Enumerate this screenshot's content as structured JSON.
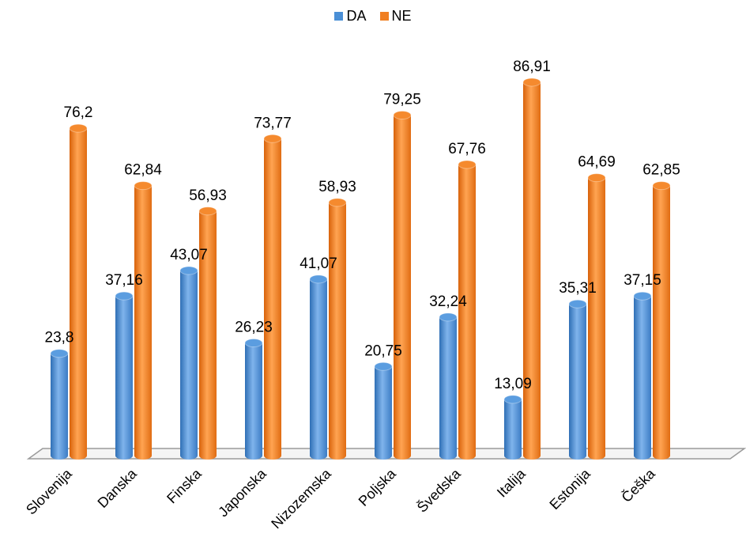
{
  "chart_data": {
    "type": "bar",
    "title": "",
    "xlabel": "",
    "ylabel": "",
    "ylim": [
      0,
      95
    ],
    "grid": false,
    "legend_position": "top-center",
    "categories": [
      "Slovenija",
      "Danska",
      "Finska",
      "Japonska",
      "Nizozemska",
      "Poljska",
      "Švedska",
      "Italija",
      "Estonija",
      "Češka"
    ],
    "series": [
      {
        "name": "DA",
        "color": "#4a8fd6",
        "values": [
          23.8,
          37.16,
          43.07,
          26.23,
          41.07,
          20.75,
          32.24,
          13.09,
          35.31,
          37.15
        ],
        "labels": [
          "23,8",
          "37,16",
          "43,07",
          "26,23",
          "41,07",
          "20,75",
          "32,24",
          "13,09",
          "35,31",
          "37,15"
        ]
      },
      {
        "name": "NE",
        "color": "#f07f22",
        "values": [
          76.2,
          62.84,
          56.93,
          73.77,
          58.93,
          79.25,
          67.76,
          86.91,
          64.69,
          62.85
        ],
        "labels": [
          "76,2",
          "62,84",
          "56,93",
          "73,77",
          "58,93",
          "79,25",
          "67,76",
          "86,91",
          "64,69",
          "62,85"
        ]
      }
    ]
  }
}
